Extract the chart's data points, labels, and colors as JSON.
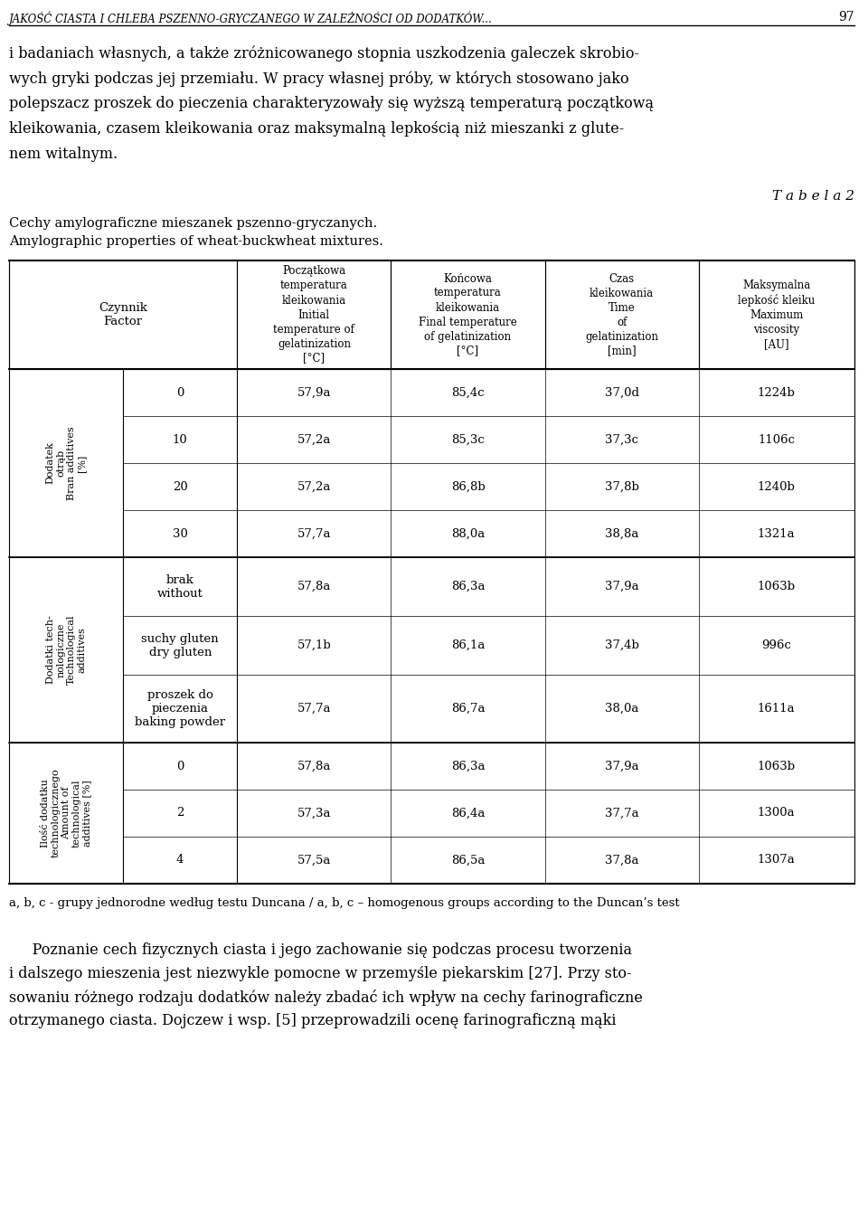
{
  "header_line": "JAKOŚĆ CIASTA I CHLEBA PSZENNO-GRYCZANEGO W ZALEŻNOŚCI OD DODATKÓW...",
  "page_number": "97",
  "intro_text": "i badaniach własnych, a także zróżnicowanego stopnia uszkodzenia galeczek skrobiowych gryki podczas jej przemiału. W pracy własnej próby, w których stosowano jako polepszacz proszek do pieczenia charakteryzowały się wyższą temperaturą początkową kleikowania, czasem kleikowania oraz maksymalną lepkością niż mieszanki z glutenem witalnym.",
  "table_label": "T a b e l a 2",
  "table_caption_pl": "Cechy amylograficzne mieszanek pszenno-gryczanych.",
  "table_caption_en": "Amylographic properties of wheat-buckwheat mixtures.",
  "col_headers": [
    [
      "Czynnik",
      "Factor"
    ],
    [
      "Początkowa\ntemperatura\nkleikowania\nInitial\ntemperature of\ngelatinization\n[°C]"
    ],
    [
      "Końcowa\ntemperatura\nkleikowania\nFinal temperature\nof gelatinization\n[°C]"
    ],
    [
      "Czas\nkleikowania\nTime\nof\ngelatinization\n[min]"
    ],
    [
      "Maksymalna\nlepkość kleiku\nMaximum\nviscosity\n[AU]"
    ]
  ],
  "row_groups": [
    {
      "row_label_line1": "Dodatek",
      "row_label_line2": "otrąb",
      "row_label_line3": "Bran additives",
      "row_label_line4": "[%]",
      "rows": [
        [
          "0",
          "57,9a",
          "85,4c",
          "37,0d",
          "1224b"
        ],
        [
          "10",
          "57,2a",
          "85,3c",
          "37,3c",
          "1106c"
        ],
        [
          "20",
          "57,2a",
          "86,8b",
          "37,8b",
          "1240b"
        ],
        [
          "30",
          "57,7a",
          "88,0a",
          "38,8a",
          "1321a"
        ]
      ]
    },
    {
      "row_label_line1": "Dodatki tech-",
      "row_label_line2": "nologiczne",
      "row_label_line3": "Technological",
      "row_label_line4": "additives",
      "rows": [
        [
          "brak\nwithout",
          "57,8a",
          "86,3a",
          "37,9a",
          "1063b"
        ],
        [
          "suchy gluten\ndry gluten",
          "57,1b",
          "86,1a",
          "37,4b",
          "996c"
        ],
        [
          "proszek do\npieczenia\nbaking powder",
          "57,7a",
          "86,7a",
          "38,0a",
          "1611a"
        ]
      ]
    },
    {
      "row_label_line1": "Ilość dodatku",
      "row_label_line2": "technologicznego",
      "row_label_line3": "Amount of",
      "row_label_line4": "technological",
      "row_label_line5": "additives [%]",
      "rows": [
        [
          "0",
          "57,8a",
          "86,3a",
          "37,9a",
          "1063b"
        ],
        [
          "2",
          "57,3a",
          "86,4a",
          "37,7a",
          "1300a"
        ],
        [
          "4",
          "57,5a",
          "86,5a",
          "37,8a",
          "1307a"
        ]
      ]
    }
  ],
  "footnote": "a, b, c - grupy jednorodne według testu Duncana / a, b, c – homogenous groups according to the Duncan’s test",
  "bottom_text": "Poznanie cech fizycznych ciasta i jego zachowanie się podczas procesu tworzenia i dalszego mieszenia jest niezwykle pomocne w przemyśle piekarskim [27]. Przy stosowaniu różnego rodzaju dodatków należy zbadać ich wpływ na cechy farinograficzne otrzymanego ciasta. Dojczew i wsp. [5] przeprowadzili ocenę farinograficzną mąki"
}
